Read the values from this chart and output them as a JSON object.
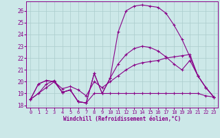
{
  "xlabel": "Windchill (Refroidissement éolien,°C)",
  "bg_color": "#cce8e8",
  "line_color": "#880088",
  "grid_color": "#aacccc",
  "xlim": [
    -0.5,
    23.5
  ],
  "ylim": [
    17.8,
    26.8
  ],
  "yticks": [
    18,
    19,
    20,
    21,
    22,
    23,
    24,
    25,
    26
  ],
  "xticks": [
    0,
    1,
    2,
    3,
    4,
    5,
    6,
    7,
    8,
    9,
    10,
    11,
    12,
    13,
    14,
    15,
    16,
    17,
    18,
    19,
    20,
    21,
    22,
    23
  ],
  "line1_x": [
    0,
    1,
    2,
    3,
    4,
    5,
    6,
    7,
    8,
    9,
    10,
    11,
    12,
    13,
    14,
    15,
    16,
    17,
    18,
    19,
    20,
    21,
    22,
    23
  ],
  "line1_y": [
    18.5,
    19.8,
    20.1,
    20.0,
    19.1,
    19.3,
    18.3,
    18.2,
    20.7,
    19.0,
    20.3,
    24.2,
    26.0,
    26.4,
    26.5,
    26.4,
    26.3,
    25.8,
    24.8,
    23.6,
    22.1,
    20.5,
    19.5,
    18.7
  ],
  "line2_x": [
    0,
    1,
    2,
    3,
    4,
    5,
    6,
    7,
    8,
    9,
    10,
    11,
    12,
    13,
    14,
    15,
    16,
    17,
    18,
    19,
    20,
    21,
    22,
    23
  ],
  "line2_y": [
    18.5,
    19.0,
    19.5,
    20.0,
    19.4,
    19.6,
    19.3,
    18.8,
    20.0,
    19.5,
    20.0,
    20.5,
    21.0,
    21.4,
    21.6,
    21.7,
    21.8,
    22.0,
    22.1,
    22.2,
    22.3,
    20.5,
    19.5,
    18.7
  ],
  "line3_x": [
    0,
    1,
    2,
    3,
    4,
    5,
    6,
    7,
    8,
    9,
    10,
    11,
    12,
    13,
    14,
    15,
    16,
    17,
    18,
    19,
    20,
    21,
    22,
    23
  ],
  "line3_y": [
    18.5,
    19.0,
    19.8,
    20.1,
    19.1,
    19.3,
    18.3,
    18.2,
    19.0,
    19.0,
    19.0,
    19.0,
    19.0,
    19.0,
    19.0,
    19.0,
    19.0,
    19.0,
    19.0,
    19.0,
    19.0,
    19.0,
    18.8,
    18.7
  ],
  "line4_x": [
    0,
    1,
    2,
    3,
    4,
    5,
    6,
    7,
    8,
    9,
    10,
    11,
    12,
    13,
    14,
    15,
    16,
    17,
    18,
    19,
    20,
    21,
    22,
    23
  ],
  "line4_y": [
    18.5,
    19.8,
    20.1,
    20.0,
    19.1,
    19.3,
    18.3,
    18.2,
    20.7,
    19.0,
    20.3,
    21.5,
    22.3,
    22.8,
    23.0,
    22.9,
    22.6,
    22.1,
    21.5,
    21.0,
    21.8,
    20.5,
    19.5,
    18.7
  ]
}
